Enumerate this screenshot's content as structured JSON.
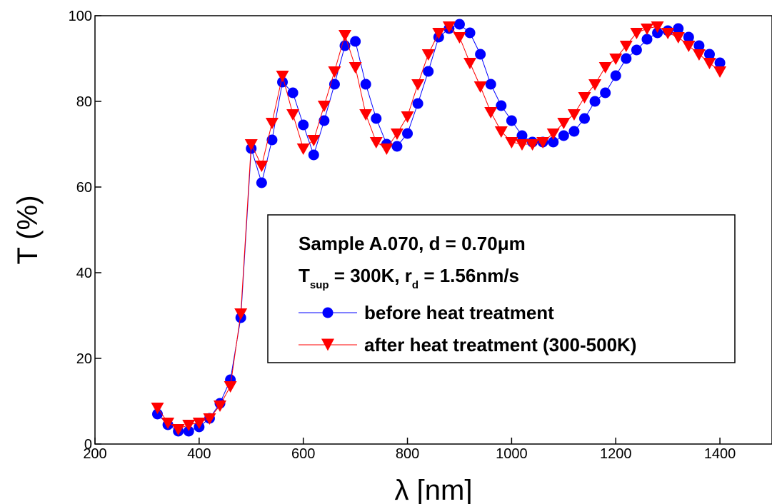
{
  "chart_data": {
    "type": "line",
    "xlabel": "λ [nm]",
    "ylabel": "T (%)",
    "xlim": [
      200,
      1500
    ],
    "ylim": [
      0,
      100
    ],
    "xticks": [
      200,
      400,
      600,
      800,
      1000,
      1200,
      1400
    ],
    "yticks": [
      0,
      20,
      40,
      60,
      80,
      100
    ],
    "grid": false,
    "legend_position": "center-right",
    "annotation": {
      "line1": "Sample A.070, d = 0.70μm",
      "line2_prefix": "T",
      "line2_sub1": "sup",
      "line2_mid": " = 300K, r",
      "line2_sub2": "d",
      "line2_suffix": " = 1.56nm/s"
    },
    "series": [
      {
        "name": "before heat treatment",
        "color": "#0000ff",
        "marker": "circle",
        "x": [
          320,
          340,
          360,
          380,
          400,
          420,
          440,
          460,
          480,
          500,
          520,
          540,
          560,
          580,
          600,
          620,
          640,
          660,
          680,
          700,
          720,
          740,
          760,
          780,
          800,
          820,
          840,
          860,
          880,
          900,
          920,
          940,
          960,
          980,
          1000,
          1020,
          1040,
          1060,
          1080,
          1100,
          1120,
          1140,
          1160,
          1180,
          1200,
          1220,
          1240,
          1260,
          1280,
          1300,
          1320,
          1340,
          1360,
          1380,
          1400
        ],
        "y": [
          7,
          4.5,
          3,
          3,
          4,
          6,
          9.5,
          15,
          29.5,
          69,
          61,
          71,
          84.5,
          82,
          74.5,
          67.5,
          75.5,
          84,
          93,
          94,
          84,
          76,
          70,
          69.5,
          72.5,
          79.5,
          87,
          95,
          97,
          98,
          96,
          91,
          84,
          79,
          75.5,
          72,
          70.5,
          70.5,
          70.5,
          72,
          73,
          76,
          80,
          82,
          86,
          90,
          92,
          94.5,
          96,
          96.5,
          97,
          95,
          93,
          91,
          89
        ]
      },
      {
        "name": "after heat treatment (300-500K)",
        "color": "#ff0000",
        "marker": "triangle-down",
        "x": [
          320,
          340,
          360,
          380,
          400,
          420,
          440,
          460,
          480,
          500,
          520,
          540,
          560,
          580,
          600,
          620,
          640,
          660,
          680,
          700,
          720,
          740,
          760,
          780,
          800,
          820,
          840,
          860,
          880,
          900,
          920,
          940,
          960,
          980,
          1000,
          1020,
          1040,
          1060,
          1080,
          1100,
          1120,
          1140,
          1160,
          1180,
          1200,
          1220,
          1240,
          1260,
          1280,
          1300,
          1320,
          1340,
          1360,
          1380,
          1400
        ],
        "y": [
          8.5,
          5,
          3.5,
          4.5,
          5,
          6,
          9,
          13.5,
          30.5,
          70,
          65,
          75,
          86,
          77,
          69,
          71,
          79,
          87,
          95.5,
          88,
          77,
          70.5,
          69,
          72.5,
          76.5,
          84,
          91,
          96,
          97.5,
          95,
          89,
          83.5,
          77.5,
          73,
          70.5,
          70,
          70,
          70.5,
          72.5,
          75,
          77,
          81,
          84,
          88,
          90,
          93,
          96,
          97,
          97.5,
          96,
          95,
          93,
          91,
          89,
          87
        ]
      }
    ]
  }
}
